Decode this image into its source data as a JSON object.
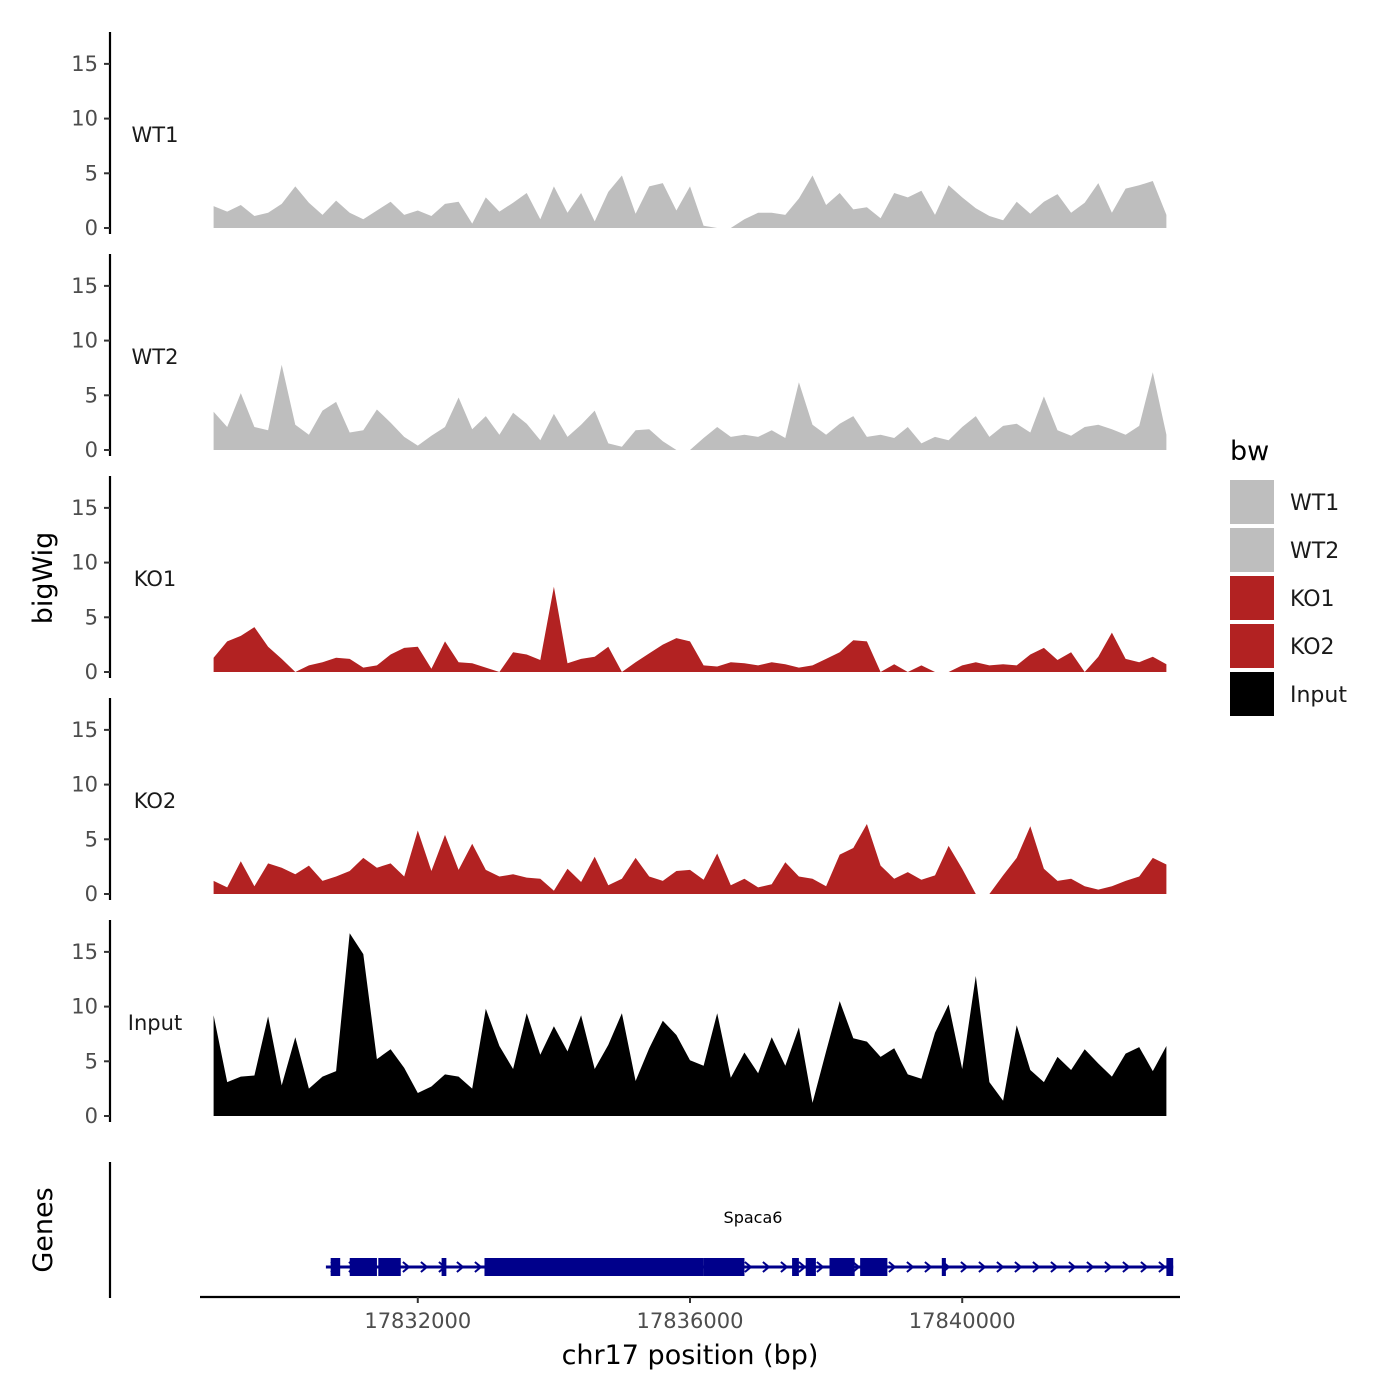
{
  "chart_data": {
    "type": "area",
    "chromosome": "chr17",
    "x_range": [
      17828800,
      17843200
    ],
    "y_range": [
      0,
      17
    ],
    "y_ticks": [
      0,
      5,
      10,
      15
    ],
    "x_ticks": [
      17832000,
      17836000,
      17840000
    ],
    "x_tick_labels": [
      "17832000",
      "17836000",
      "17840000"
    ],
    "xlabel": "chr17 position (bp)",
    "ylabel_tracks": "bigWig",
    "ylabel_genes": "Genes",
    "legend": {
      "title": "bw",
      "position": "right",
      "entries": [
        {
          "label": "WT1",
          "color": "#bebebe"
        },
        {
          "label": "WT2",
          "color": "#bebebe"
        },
        {
          "label": "KO1",
          "color": "#b22222"
        },
        {
          "label": "KO2",
          "color": "#b22222"
        },
        {
          "label": "Input",
          "color": "#000000"
        }
      ]
    },
    "series": [
      {
        "name": "WT1",
        "color": "#bebebe",
        "x": [
          17829000,
          17829200,
          17829400,
          17829600,
          17829800,
          17830000,
          17830200,
          17830400,
          17830600,
          17830800,
          17831000,
          17831200,
          17831400,
          17831600,
          17831800,
          17832000,
          17832200,
          17832400,
          17832600,
          17832800,
          17833000,
          17833200,
          17833400,
          17833600,
          17833800,
          17834000,
          17834200,
          17834400,
          17834600,
          17834800,
          17835000,
          17835200,
          17835400,
          17835600,
          17835800,
          17836000,
          17836200,
          17836400,
          17836600,
          17836800,
          17837000,
          17837200,
          17837400,
          17837600,
          17837800,
          17838000,
          17838200,
          17838400,
          17838600,
          17838800,
          17839000,
          17839200,
          17839400,
          17839600,
          17839800,
          17840000,
          17840200,
          17840400,
          17840600,
          17840800,
          17841000,
          17841200,
          17841400,
          17841600,
          17841800,
          17842000,
          17842200,
          17842400,
          17842600,
          17842800,
          17843000,
          17843200
        ],
        "values": [
          2,
          1.5,
          2.1,
          1.1,
          1.4,
          2.2,
          3.8,
          2.3,
          1.2,
          2.5,
          1.4,
          0.8,
          1.6,
          2.4,
          1.2,
          1.6,
          1.1,
          2.2,
          2.4,
          0.4,
          2.8,
          1.5,
          2.3,
          3.2,
          0.8,
          3.8,
          1.4,
          3.2,
          0.6,
          3.3,
          4.8,
          1.3,
          3.8,
          4.1,
          1.6,
          3.8,
          0.2,
          0,
          0,
          0.8,
          1.4,
          1.4,
          1.2,
          2.7,
          4.8,
          2.1,
          3.2,
          1.7,
          1.9,
          0.9,
          3.2,
          2.8,
          3.4,
          1.2,
          3.9,
          2.8,
          1.8,
          1.1,
          0.7,
          2.4,
          1.3,
          2.4,
          3.1,
          1.4,
          2.3,
          4.1,
          1.4,
          3.6,
          3.9,
          4.3,
          1.2,
          1.6
        ]
      },
      {
        "name": "WT2",
        "color": "#bebebe",
        "x": [
          17829000,
          17829200,
          17829400,
          17829600,
          17829800,
          17830000,
          17830200,
          17830400,
          17830600,
          17830800,
          17831000,
          17831200,
          17831400,
          17831600,
          17831800,
          17832000,
          17832200,
          17832400,
          17832600,
          17832800,
          17833000,
          17833200,
          17833400,
          17833600,
          17833800,
          17834000,
          17834200,
          17834400,
          17834600,
          17834800,
          17835000,
          17835200,
          17835400,
          17835600,
          17835800,
          17836000,
          17836200,
          17836400,
          17836600,
          17836800,
          17837000,
          17837200,
          17837400,
          17837600,
          17837800,
          17838000,
          17838200,
          17838400,
          17838600,
          17838800,
          17839000,
          17839200,
          17839400,
          17839600,
          17839800,
          17840000,
          17840200,
          17840400,
          17840600,
          17840800,
          17841000,
          17841200,
          17841400,
          17841600,
          17841800,
          17842000,
          17842200,
          17842400,
          17842600,
          17842800,
          17843000,
          17843200
        ],
        "values": [
          3.5,
          2.1,
          5.2,
          2.1,
          1.8,
          7.8,
          2.3,
          1.4,
          3.6,
          4.4,
          1.6,
          1.8,
          3.7,
          2.5,
          1.2,
          0.4,
          1.3,
          2.1,
          4.8,
          1.9,
          3.1,
          1.4,
          3.4,
          2.4,
          0.9,
          3.3,
          1.2,
          2.3,
          3.6,
          0.6,
          0.3,
          1.8,
          1.9,
          0.8,
          0,
          0,
          1.1,
          2.1,
          1.2,
          1.4,
          1.2,
          1.8,
          1.1,
          6.2,
          2.3,
          1.4,
          2.4,
          3.1,
          1.2,
          1.4,
          1.1,
          2.1,
          0.6,
          1.2,
          0.9,
          2.1,
          3.1,
          1.2,
          2.2,
          2.4,
          1.6,
          4.9,
          1.8,
          1.3,
          2.1,
          2.3,
          1.9,
          1.4,
          2.2,
          7.1,
          1.4,
          0.6
        ]
      },
      {
        "name": "KO1",
        "color": "#b22222",
        "x": [
          17829000,
          17829200,
          17829400,
          17829600,
          17829800,
          17830000,
          17830200,
          17830400,
          17830600,
          17830800,
          17831000,
          17831200,
          17831400,
          17831600,
          17831800,
          17832000,
          17832200,
          17832400,
          17832600,
          17832800,
          17833000,
          17833200,
          17833400,
          17833600,
          17833800,
          17834000,
          17834200,
          17834400,
          17834600,
          17834800,
          17835000,
          17835200,
          17835400,
          17835600,
          17835800,
          17836000,
          17836200,
          17836400,
          17836600,
          17836800,
          17837000,
          17837200,
          17837400,
          17837600,
          17837800,
          17838000,
          17838200,
          17838400,
          17838600,
          17838800,
          17839000,
          17839200,
          17839400,
          17839600,
          17839800,
          17840000,
          17840200,
          17840400,
          17840600,
          17840800,
          17841000,
          17841200,
          17841400,
          17841600,
          17841800,
          17842000,
          17842200,
          17842400,
          17842600,
          17842800,
          17843000,
          17843200
        ],
        "values": [
          1.3,
          2.8,
          3.3,
          4.1,
          2.3,
          1.2,
          0,
          0.6,
          0.9,
          1.3,
          1.2,
          0.4,
          0.6,
          1.6,
          2.2,
          2.3,
          0.3,
          2.8,
          0.9,
          0.8,
          0.4,
          0,
          1.8,
          1.6,
          1.1,
          7.8,
          0.8,
          1.2,
          1.4,
          2.3,
          0,
          0.9,
          1.7,
          2.5,
          3.1,
          2.8,
          0.6,
          0.5,
          0.9,
          0.8,
          0.6,
          0.9,
          0.7,
          0.4,
          0.6,
          1.2,
          1.8,
          2.9,
          2.8,
          0,
          0.7,
          0,
          0.6,
          0,
          0,
          0.6,
          0.9,
          0.6,
          0.7,
          0.6,
          1.6,
          2.2,
          1.1,
          1.8,
          0,
          1.4,
          3.6,
          1.2,
          0.9,
          1.4,
          0.7,
          1.1
        ]
      },
      {
        "name": "KO2",
        "color": "#b22222",
        "x": [
          17829000,
          17829200,
          17829400,
          17829600,
          17829800,
          17830000,
          17830200,
          17830400,
          17830600,
          17830800,
          17831000,
          17831200,
          17831400,
          17831600,
          17831800,
          17832000,
          17832200,
          17832400,
          17832600,
          17832800,
          17833000,
          17833200,
          17833400,
          17833600,
          17833800,
          17834000,
          17834200,
          17834400,
          17834600,
          17834800,
          17835000,
          17835200,
          17835400,
          17835600,
          17835800,
          17836000,
          17836200,
          17836400,
          17836600,
          17836800,
          17837000,
          17837200,
          17837400,
          17837600,
          17837800,
          17838000,
          17838200,
          17838400,
          17838600,
          17838800,
          17839000,
          17839200,
          17839400,
          17839600,
          17839800,
          17840000,
          17840200,
          17840400,
          17840600,
          17840800,
          17841000,
          17841200,
          17841400,
          17841600,
          17841800,
          17842000,
          17842200,
          17842400,
          17842600,
          17842800,
          17843000,
          17843200
        ],
        "values": [
          1.2,
          0.6,
          3,
          0.7,
          2.8,
          2.4,
          1.8,
          2.6,
          1.2,
          1.6,
          2.1,
          3.3,
          2.4,
          2.8,
          1.6,
          5.8,
          2.1,
          5.4,
          2.2,
          4.6,
          2.2,
          1.6,
          1.8,
          1.5,
          1.4,
          0.3,
          2.3,
          1.1,
          3.4,
          0.8,
          1.4,
          3.3,
          1.6,
          1.2,
          2.1,
          2.2,
          1.3,
          3.7,
          0.8,
          1.4,
          0.6,
          0.9,
          2.9,
          1.6,
          1.4,
          0.7,
          3.6,
          4.2,
          6.4,
          2.6,
          1.4,
          2,
          1.3,
          1.7,
          4.4,
          2.3,
          0,
          0,
          1.7,
          3.3,
          6.2,
          2.3,
          1.2,
          1.4,
          0.7,
          0.4,
          0.7,
          1.2,
          1.6,
          3.3,
          2.7,
          1.1
        ]
      },
      {
        "name": "Input",
        "color": "#000000",
        "x": [
          17829000,
          17829200,
          17829400,
          17829600,
          17829800,
          17830000,
          17830200,
          17830400,
          17830600,
          17830800,
          17831000,
          17831200,
          17831400,
          17831600,
          17831800,
          17832000,
          17832200,
          17832400,
          17832600,
          17832800,
          17833000,
          17833200,
          17833400,
          17833600,
          17833800,
          17834000,
          17834200,
          17834400,
          17834600,
          17834800,
          17835000,
          17835200,
          17835400,
          17835600,
          17835800,
          17836000,
          17836200,
          17836400,
          17836600,
          17836800,
          17837000,
          17837200,
          17837400,
          17837600,
          17837800,
          17838000,
          17838200,
          17838400,
          17838600,
          17838800,
          17839000,
          17839200,
          17839400,
          17839600,
          17839800,
          17840000,
          17840200,
          17840400,
          17840600,
          17840800,
          17841000,
          17841200,
          17841400,
          17841600,
          17841800,
          17842000,
          17842200,
          17842400,
          17842600,
          17842800,
          17843000,
          17843200
        ],
        "values": [
          9.2,
          3.1,
          3.6,
          3.7,
          9.1,
          2.8,
          7.2,
          2.5,
          3.6,
          4.1,
          16.7,
          14.8,
          5.2,
          6.1,
          4.4,
          2.1,
          2.7,
          3.8,
          3.6,
          2.5,
          9.8,
          6.4,
          4.3,
          9.4,
          5.6,
          8.2,
          5.9,
          9.2,
          4.3,
          6.5,
          9.4,
          3.2,
          6.2,
          8.7,
          7.4,
          5.1,
          4.6,
          9.4,
          3.5,
          5.8,
          3.9,
          7.2,
          4.6,
          8.1,
          1.2,
          5.9,
          10.5,
          7.1,
          6.8,
          5.4,
          6.2,
          3.8,
          3.4,
          7.6,
          10.2,
          4.3,
          12.8,
          3.1,
          1.4,
          8.3,
          4.2,
          3.1,
          5.4,
          4.2,
          6.1,
          4.8,
          3.6,
          5.7,
          6.3,
          4.1,
          6.4,
          5.2
        ]
      }
    ],
    "gene": {
      "name": "Spaca6",
      "color": "#00008b",
      "start": 17830650,
      "end": 17843100,
      "strand": "+",
      "exons": [
        [
          17830720,
          17830860
        ],
        [
          17831000,
          17831400
        ],
        [
          17831420,
          17831750
        ],
        [
          17832350,
          17832420
        ],
        [
          17832980,
          17836200
        ],
        [
          17836200,
          17836800
        ],
        [
          17837500,
          17837600
        ],
        [
          17837700,
          17837850
        ],
        [
          17838050,
          17838420
        ],
        [
          17838500,
          17838900
        ],
        [
          17839700,
          17839760
        ],
        [
          17843000,
          17843100
        ]
      ]
    }
  }
}
